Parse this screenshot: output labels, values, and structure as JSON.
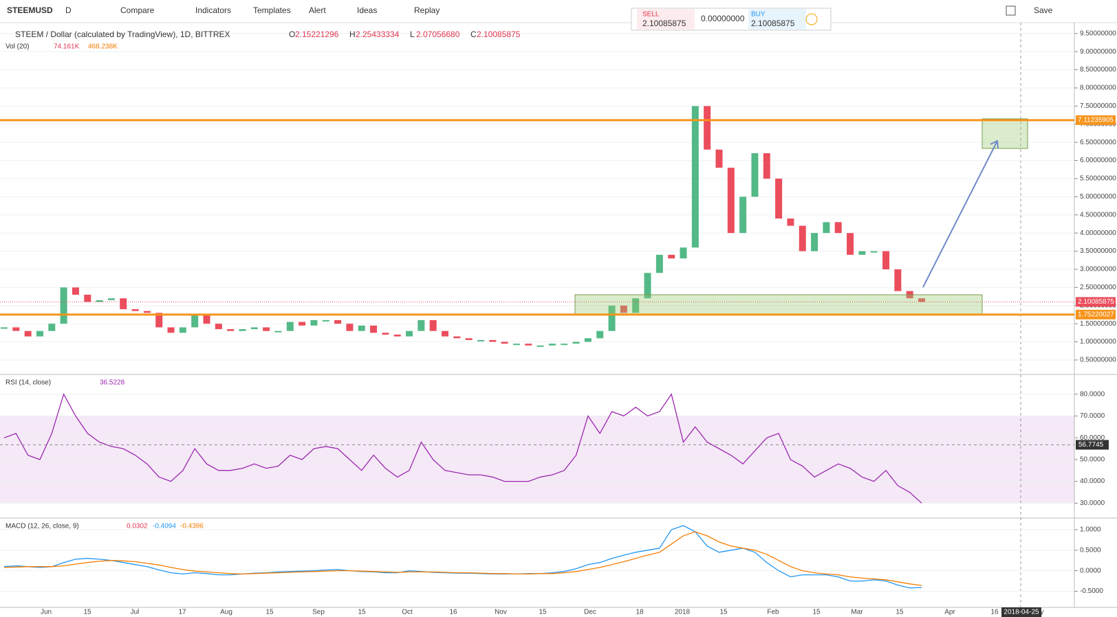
{
  "toolbar": {
    "symbol": "STEEMUSD",
    "interval": "D",
    "items": [
      "Compare",
      "Indicators",
      "Templates",
      "Alert",
      "Ideas",
      "Replay"
    ],
    "save": "Save"
  },
  "trade_panel": {
    "sell_label": "SELL",
    "sell_price": "2.10085875",
    "spread": "0.00000000",
    "buy_label": "BUY",
    "buy_price": "2.10085875"
  },
  "legend": {
    "title": "STEEM / Dollar (calculated by TradingView), 1D, BITTREX",
    "ohlc": [
      {
        "key": "O",
        "value": "2.15221296"
      },
      {
        "key": "H",
        "value": "2.25433334"
      },
      {
        "key": "L",
        "value": "2.07056680"
      },
      {
        "key": "C",
        "value": "2.10085875"
      }
    ],
    "volume": {
      "name": "Vol (20)",
      "values": [
        "74.161K",
        "468.238K"
      ]
    }
  },
  "price_pane": {
    "ylim": [
      0.12,
      9.78
    ],
    "yticks": [
      {
        "value": 0.5,
        "label": "0.50000000"
      },
      {
        "value": 1,
        "label": "1.00000000"
      },
      {
        "value": 1.5,
        "label": "1.50000000"
      },
      {
        "value": 2,
        "label": "2.00000000"
      },
      {
        "value": 2.5,
        "label": "2.50000000"
      },
      {
        "value": 3,
        "label": "3.00000000"
      },
      {
        "value": 3.5,
        "label": "3.50000000"
      },
      {
        "value": 4,
        "label": "4.00000000"
      },
      {
        "value": 4.5,
        "label": "4.50000000"
      },
      {
        "value": 5,
        "label": "5.00000000"
      },
      {
        "value": 5.5,
        "label": "5.50000000"
      },
      {
        "value": 6,
        "label": "6.00000000"
      },
      {
        "value": 6.5,
        "label": "6.50000000"
      },
      {
        "value": 7,
        "label": "7.00000000"
      },
      {
        "value": 7.5,
        "label": "7.50000000"
      },
      {
        "value": 8,
        "label": "8.00000000"
      },
      {
        "value": 8.5,
        "label": "8.50000000"
      },
      {
        "value": 9,
        "label": "9.00000000"
      },
      {
        "value": 9.5,
        "label": "9.50000000"
      }
    ],
    "closes": [
      1.4,
      1.3,
      1.15,
      1.3,
      1.5,
      2.5,
      2.3,
      2.1,
      2.15,
      2.2,
      1.9,
      1.85,
      1.8,
      1.4,
      1.25,
      1.4,
      1.75,
      1.5,
      1.35,
      1.3,
      1.35,
      1.4,
      1.3,
      1.3,
      1.55,
      1.45,
      1.6,
      1.6,
      1.5,
      1.3,
      1.45,
      1.25,
      1.2,
      1.15,
      1.3,
      1.6,
      1.3,
      1.15,
      1.1,
      1.05,
      1.05,
      1.0,
      0.95,
      0.95,
      0.9,
      0.9,
      0.95,
      0.95,
      1.0,
      1.1,
      1.3,
      2.0,
      1.8,
      2.2,
      2.9,
      3.4,
      3.3,
      3.6,
      7.5,
      6.3,
      5.8,
      4.0,
      5.0,
      6.2,
      5.5,
      4.4,
      4.2,
      3.5,
      4.0,
      4.3,
      4.0,
      3.4,
      3.5,
      3.5,
      3.0,
      2.4,
      2.2,
      2.1
    ],
    "levels": [
      {
        "value": 7.11235905,
        "label": "7.11235905"
      },
      {
        "value": 1.75220027,
        "label": "1.75220027"
      }
    ],
    "last": {
      "value": 2.10085875,
      "label": "2.10085875"
    }
  },
  "rsi_pane": {
    "name": "RSI (14, close)",
    "current": "36.5228",
    "ylim": [
      23.8,
      88.1
    ],
    "yticks": [
      {
        "value": 30,
        "label": "30.0000"
      },
      {
        "value": 40,
        "label": "40.0000"
      },
      {
        "value": 50,
        "label": "50.0000"
      },
      {
        "value": 60,
        "label": "60.0000"
      },
      {
        "value": 70,
        "label": "70.0000"
      },
      {
        "value": 80,
        "label": "80.0000"
      }
    ],
    "cursor": {
      "value": 56.7745,
      "label": "56.7745"
    },
    "values": [
      60,
      62,
      52,
      50,
      62,
      80,
      70,
      62,
      58,
      56,
      55,
      52,
      48,
      42,
      40,
      45,
      55,
      48,
      45,
      45,
      46,
      48,
      46,
      47,
      52,
      50,
      55,
      56,
      55,
      50,
      45,
      52,
      46,
      42,
      45,
      58,
      50,
      45,
      44,
      43,
      43,
      42,
      40,
      40,
      40,
      42,
      43,
      45,
      52,
      70,
      62,
      72,
      70,
      74,
      70,
      72,
      80,
      58,
      65,
      58,
      55,
      52,
      48,
      54,
      60,
      62,
      50,
      47,
      42,
      45,
      48,
      46,
      42,
      40,
      45,
      38,
      35,
      30
    ]
  },
  "macd_pane": {
    "name": "MACD (12, 26, close, 9)",
    "readings": [
      "0.0302",
      "-0.4094",
      "-0.4396"
    ],
    "ylim": [
      -0.86,
      1.25
    ],
    "yticks": [
      {
        "value": -0.5,
        "label": "-0.5000"
      },
      {
        "value": 0,
        "label": "0.0000"
      },
      {
        "value": 0.5,
        "label": "0.5000"
      },
      {
        "value": 1,
        "label": "1.0000"
      }
    ],
    "macd": [
      0.1,
      0.12,
      0.1,
      0.08,
      0.1,
      0.2,
      0.28,
      0.3,
      0.28,
      0.25,
      0.2,
      0.15,
      0.1,
      0.02,
      -0.05,
      -0.08,
      -0.05,
      -0.07,
      -0.1,
      -0.1,
      -0.08,
      -0.06,
      -0.05,
      -0.03,
      -0.02,
      -0.01,
      0.0,
      0.02,
      0.03,
      0.0,
      -0.02,
      -0.03,
      -0.05,
      -0.05,
      0.0,
      -0.02,
      -0.04,
      -0.05,
      -0.06,
      -0.06,
      -0.07,
      -0.08,
      -0.08,
      -0.08,
      -0.07,
      -0.07,
      -0.05,
      -0.02,
      0.05,
      0.15,
      0.2,
      0.3,
      0.38,
      0.45,
      0.5,
      0.55,
      1.0,
      1.1,
      0.95,
      0.6,
      0.45,
      0.5,
      0.55,
      0.45,
      0.2,
      0.0,
      -0.15,
      -0.1,
      -0.1,
      -0.1,
      -0.15,
      -0.25,
      -0.25,
      -0.22,
      -0.25,
      -0.35,
      -0.42,
      -0.41
    ],
    "signal": [
      0.08,
      0.09,
      0.1,
      0.1,
      0.1,
      0.12,
      0.16,
      0.2,
      0.23,
      0.25,
      0.24,
      0.22,
      0.18,
      0.14,
      0.08,
      0.03,
      -0.01,
      -0.03,
      -0.05,
      -0.07,
      -0.08,
      -0.07,
      -0.06,
      -0.05,
      -0.04,
      -0.03,
      -0.02,
      -0.01,
      0.0,
      0.0,
      -0.01,
      -0.02,
      -0.03,
      -0.04,
      -0.03,
      -0.03,
      -0.03,
      -0.04,
      -0.05,
      -0.05,
      -0.06,
      -0.07,
      -0.07,
      -0.08,
      -0.08,
      -0.07,
      -0.07,
      -0.05,
      -0.02,
      0.03,
      0.08,
      0.15,
      0.22,
      0.3,
      0.38,
      0.45,
      0.65,
      0.85,
      0.95,
      0.85,
      0.7,
      0.6,
      0.55,
      0.5,
      0.4,
      0.25,
      0.1,
      0.0,
      -0.05,
      -0.08,
      -0.1,
      -0.15,
      -0.18,
      -0.2,
      -0.22,
      -0.27,
      -0.32,
      -0.36
    ]
  },
  "time_axis": {
    "labels": [
      "Jun",
      "15",
      "Jul",
      "17",
      "Aug",
      "15",
      "Sep",
      "15",
      "Oct",
      "16",
      "Nov",
      "15",
      "Dec",
      "18",
      "2018",
      "15",
      "Feb",
      "15",
      "Mar",
      "15",
      "Apr",
      "16",
      "May"
    ],
    "cursor": "2018-04-25"
  }
}
